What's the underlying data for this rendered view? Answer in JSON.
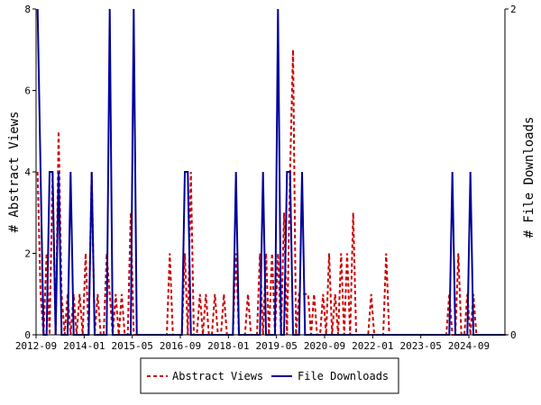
{
  "chart_data": {
    "type": "line",
    "xlabel": "",
    "ylabel": "# Abstract Views",
    "y2label": "# File Downloads",
    "x_tick_labels": [
      "2012-09",
      "2014-01",
      "2015-05",
      "2016-09",
      "2018-01",
      "2019-05",
      "2020-09",
      "2022-01",
      "2023-05",
      "2024-09"
    ],
    "x_tick_months": [
      0,
      16,
      32,
      48,
      64,
      80,
      96,
      112,
      128,
      144
    ],
    "x_range": [
      "2012-09",
      "2025-09"
    ],
    "x_range_months": [
      0,
      156
    ],
    "ylim": [
      0,
      8
    ],
    "yticks": [
      0,
      2,
      4,
      6,
      8
    ],
    "y2lim": [
      0,
      2
    ],
    "y2ticks": [
      0,
      2
    ],
    "legend": {
      "position": "bottom",
      "entries": [
        "Abstract Views",
        "File Downloads"
      ]
    },
    "grid": false,
    "series": [
      {
        "name": "Abstract Views",
        "axis": "left",
        "color": "#cc0000",
        "style": "dashed",
        "values": [
          4,
          1,
          0,
          2,
          0,
          4,
          0,
          5,
          1,
          0,
          1,
          0,
          1,
          0,
          1,
          0,
          2,
          0,
          4,
          0,
          1,
          0,
          0,
          2,
          1,
          0,
          1,
          0,
          1,
          0,
          0,
          3,
          0,
          0,
          0,
          0,
          0,
          0,
          0,
          0,
          0,
          0,
          0,
          0,
          2,
          0,
          0,
          0,
          0,
          2,
          0,
          4,
          0,
          0,
          1,
          0,
          1,
          0,
          0,
          1,
          0,
          0,
          1,
          0,
          0,
          0,
          2,
          0,
          0,
          0,
          1,
          0,
          0,
          0,
          2,
          0,
          2,
          0,
          2,
          0,
          2,
          0,
          3,
          0,
          4,
          7,
          0,
          1,
          1,
          1,
          1,
          0,
          1,
          0,
          0,
          1,
          0,
          2,
          0,
          1,
          0,
          2,
          0,
          2,
          0,
          3,
          0,
          0,
          0,
          0,
          0,
          1,
          0,
          0,
          0,
          0,
          2,
          0,
          0,
          0,
          0,
          0,
          0,
          0,
          0,
          0,
          0,
          0,
          0,
          0,
          0,
          0,
          0,
          0,
          0,
          0,
          0,
          1,
          0,
          0,
          2,
          0,
          0,
          1,
          0,
          1,
          0,
          0,
          0,
          0,
          0,
          0,
          0,
          0,
          0,
          0,
          0
        ]
      },
      {
        "name": "File Downloads",
        "axis": "right",
        "color": "#000099",
        "style": "solid",
        "values": [
          2,
          1,
          0,
          0,
          1,
          1,
          0,
          1,
          0,
          0,
          0,
          1,
          0,
          0,
          0,
          0,
          0,
          0,
          1,
          0,
          0,
          0,
          0,
          0,
          2,
          0,
          0,
          0,
          0,
          0,
          0,
          0,
          2,
          0,
          0,
          0,
          0,
          0,
          0,
          0,
          0,
          0,
          0,
          0,
          0,
          0,
          0,
          0,
          0,
          1,
          1,
          0,
          0,
          0,
          0,
          0,
          0,
          0,
          0,
          0,
          0,
          0,
          0,
          0,
          0,
          0,
          1,
          0,
          0,
          0,
          0,
          0,
          0,
          0,
          0,
          1,
          0,
          0,
          0,
          0,
          2,
          0,
          0,
          1,
          1,
          0,
          0,
          0,
          1,
          0,
          0,
          0,
          0,
          0,
          0,
          0,
          0,
          0,
          0,
          0,
          0,
          0,
          0,
          0,
          0,
          0,
          0,
          0,
          0,
          0,
          0,
          0,
          0,
          0,
          0,
          0,
          0,
          0,
          0,
          0,
          0,
          0,
          0,
          0,
          0,
          0,
          0,
          0,
          0,
          0,
          0,
          0,
          0,
          0,
          0,
          0,
          0,
          0,
          1,
          0,
          0,
          0,
          0,
          0,
          1,
          0,
          0,
          0,
          0,
          0,
          0,
          0,
          0,
          0,
          0,
          0
        ]
      }
    ]
  }
}
